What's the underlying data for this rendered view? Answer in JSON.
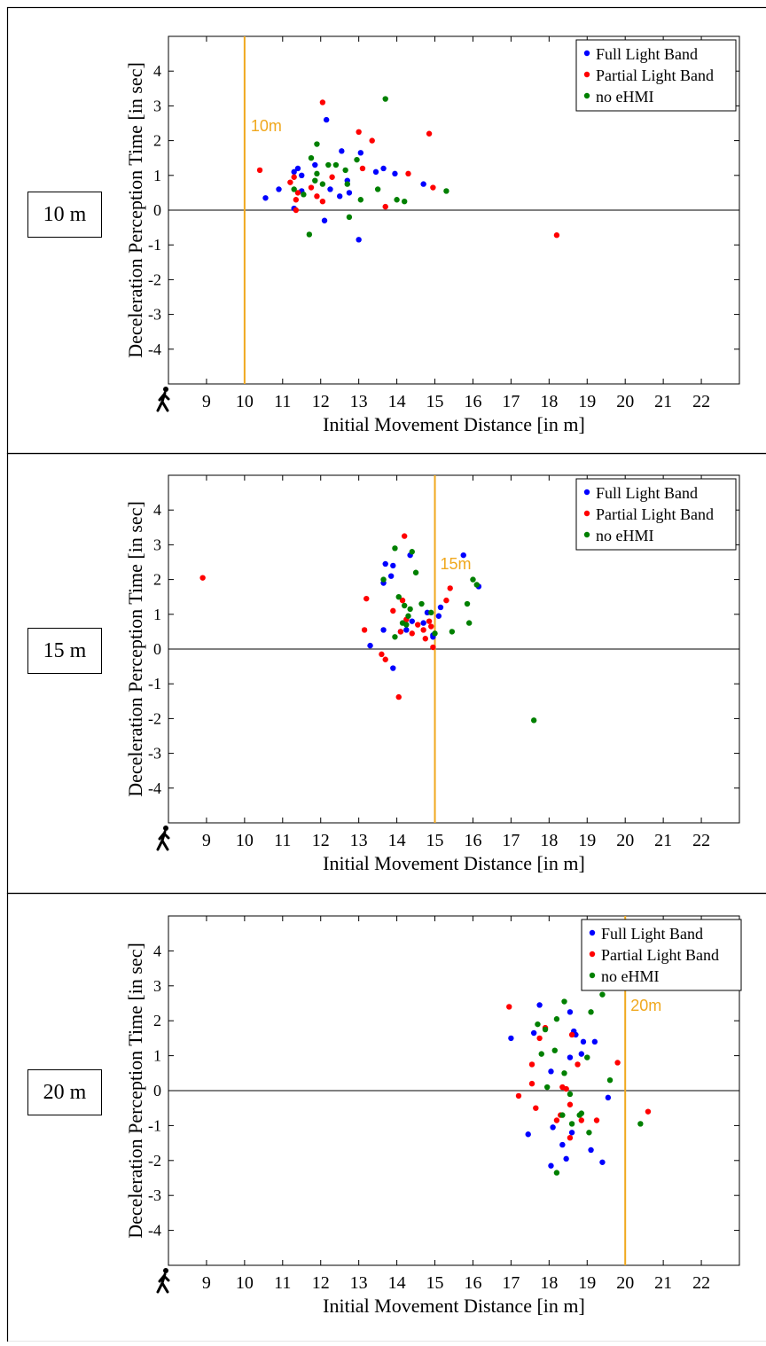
{
  "panels": [
    {
      "label": "10 m"
    },
    {
      "label": "15 m"
    },
    {
      "label": "20 m"
    }
  ],
  "legend_colors": {
    "Full Light Band": "#0000ff",
    "Partial Light Band": "#ff0000",
    "no eHMI": "#008000"
  },
  "threshold_color": "#f0a81e",
  "pedestrian_icon": "walking-person-icon",
  "chart_data": [
    {
      "type": "scatter",
      "xlabel": "Initial Movement Distance [in m]",
      "ylabel": "Deceleration Perception Time [in sec]",
      "xlim": [
        8,
        23
      ],
      "ylim": [
        -5,
        5
      ],
      "xticks": [
        "9",
        "10",
        "11",
        "12",
        "13",
        "14",
        "15",
        "16",
        "17",
        "18",
        "19",
        "20",
        "21",
        "22"
      ],
      "yticks": [
        "4",
        "3",
        "2",
        "1",
        "0",
        "-1",
        "-2",
        "-3",
        "-4"
      ],
      "threshold": {
        "x": 10,
        "label": "10m"
      },
      "legend": "top-right",
      "series": [
        {
          "name": "Full Light Band",
          "color": "#0000ff",
          "points": [
            [
              10.55,
              0.35
            ],
            [
              10.9,
              0.6
            ],
            [
              11.3,
              0.05
            ],
            [
              11.3,
              1.1
            ],
            [
              11.4,
              1.2
            ],
            [
              11.5,
              1.0
            ],
            [
              11.85,
              1.3
            ],
            [
              12.1,
              -0.3
            ],
            [
              12.15,
              2.6
            ],
            [
              12.25,
              0.6
            ],
            [
              12.5,
              0.4
            ],
            [
              12.55,
              1.7
            ],
            [
              12.7,
              0.85
            ],
            [
              12.75,
              0.5
            ],
            [
              13.0,
              -0.85
            ],
            [
              13.05,
              1.65
            ],
            [
              13.45,
              1.1
            ],
            [
              13.65,
              1.2
            ],
            [
              13.95,
              1.05
            ],
            [
              14.7,
              0.75
            ],
            [
              11.5,
              0.55
            ]
          ]
        },
        {
          "name": "Partial Light Band",
          "color": "#ff0000",
          "points": [
            [
              10.4,
              1.15
            ],
            [
              11.2,
              0.8
            ],
            [
              11.3,
              0.95
            ],
            [
              11.4,
              0.5
            ],
            [
              11.35,
              0.0
            ],
            [
              11.75,
              0.65
            ],
            [
              11.9,
              0.4
            ],
            [
              12.05,
              3.1
            ],
            [
              12.05,
              0.25
            ],
            [
              12.3,
              0.95
            ],
            [
              13.0,
              2.25
            ],
            [
              13.1,
              1.2
            ],
            [
              13.35,
              2.0
            ],
            [
              13.7,
              0.1
            ],
            [
              14.3,
              1.05
            ],
            [
              14.85,
              2.2
            ],
            [
              14.95,
              0.65
            ],
            [
              18.2,
              -0.72
            ],
            [
              11.35,
              0.3
            ]
          ]
        },
        {
          "name": "no eHMI",
          "color": "#008000",
          "points": [
            [
              11.3,
              0.6
            ],
            [
              11.55,
              0.45
            ],
            [
              11.7,
              -0.7
            ],
            [
              11.75,
              1.5
            ],
            [
              11.85,
              0.85
            ],
            [
              11.9,
              1.9
            ],
            [
              11.9,
              1.05
            ],
            [
              12.2,
              1.3
            ],
            [
              12.4,
              1.3
            ],
            [
              12.65,
              1.15
            ],
            [
              12.7,
              0.75
            ],
            [
              12.75,
              -0.2
            ],
            [
              12.95,
              1.45
            ],
            [
              13.05,
              0.3
            ],
            [
              13.5,
              0.6
            ],
            [
              13.7,
              3.2
            ],
            [
              14.0,
              0.3
            ],
            [
              14.2,
              0.25
            ],
            [
              15.3,
              0.55
            ],
            [
              12.05,
              0.75
            ]
          ]
        }
      ]
    },
    {
      "type": "scatter",
      "xlabel": "Initial Movement Distance [in m]",
      "ylabel": "Deceleration Perception Time [in sec]",
      "xlim": [
        8,
        23
      ],
      "ylim": [
        -5,
        5
      ],
      "xticks": [
        "9",
        "10",
        "11",
        "12",
        "13",
        "14",
        "15",
        "16",
        "17",
        "18",
        "19",
        "20",
        "21",
        "22"
      ],
      "yticks": [
        "4",
        "3",
        "2",
        "1",
        "0",
        "-1",
        "-2",
        "-3",
        "-4"
      ],
      "threshold": {
        "x": 15,
        "label": "15m"
      },
      "legend": "top-right",
      "series": [
        {
          "name": "Full Light Band",
          "color": "#0000ff",
          "points": [
            [
              13.3,
              0.1
            ],
            [
              13.65,
              0.55
            ],
            [
              13.65,
              1.9
            ],
            [
              13.7,
              2.45
            ],
            [
              13.85,
              2.1
            ],
            [
              13.9,
              2.4
            ],
            [
              13.9,
              -0.55
            ],
            [
              14.25,
              0.55
            ],
            [
              14.35,
              2.7
            ],
            [
              14.4,
              0.8
            ],
            [
              14.7,
              0.75
            ],
            [
              14.8,
              1.05
            ],
            [
              14.95,
              0.35
            ],
            [
              15.1,
              0.95
            ],
            [
              15.15,
              1.2
            ],
            [
              15.75,
              2.7
            ],
            [
              16.15,
              1.8
            ],
            [
              14.1,
              0.5
            ],
            [
              14.95,
              0.4
            ]
          ]
        },
        {
          "name": "Partial Light Band",
          "color": "#ff0000",
          "points": [
            [
              8.9,
              2.05
            ],
            [
              13.15,
              0.55
            ],
            [
              13.2,
              1.45
            ],
            [
              13.6,
              -0.15
            ],
            [
              13.7,
              -0.3
            ],
            [
              13.9,
              1.1
            ],
            [
              14.05,
              -1.38
            ],
            [
              14.1,
              0.5
            ],
            [
              14.15,
              1.4
            ],
            [
              14.2,
              3.25
            ],
            [
              14.25,
              0.85
            ],
            [
              14.4,
              0.45
            ],
            [
              14.55,
              0.7
            ],
            [
              14.7,
              0.55
            ],
            [
              14.75,
              0.3
            ],
            [
              14.85,
              0.8
            ],
            [
              14.95,
              0.05
            ],
            [
              15.3,
              1.4
            ],
            [
              15.4,
              1.75
            ],
            [
              14.9,
              0.65
            ]
          ]
        },
        {
          "name": "no eHMI",
          "color": "#008000",
          "points": [
            [
              13.65,
              2.0
            ],
            [
              13.95,
              0.35
            ],
            [
              13.95,
              2.9
            ],
            [
              14.05,
              1.5
            ],
            [
              14.15,
              0.75
            ],
            [
              14.2,
              1.25
            ],
            [
              14.3,
              0.95
            ],
            [
              14.35,
              1.15
            ],
            [
              14.4,
              2.8
            ],
            [
              14.5,
              2.2
            ],
            [
              14.65,
              1.3
            ],
            [
              14.9,
              1.05
            ],
            [
              15.0,
              0.45
            ],
            [
              15.45,
              0.5
            ],
            [
              15.85,
              1.3
            ],
            [
              15.9,
              0.75
            ],
            [
              16.0,
              2.0
            ],
            [
              16.1,
              1.85
            ],
            [
              17.6,
              -2.05
            ],
            [
              14.25,
              0.7
            ]
          ]
        }
      ]
    },
    {
      "type": "scatter",
      "xlabel": "Initial Movement Distance [in m]",
      "ylabel": "Deceleration Perception Time [in sec]",
      "xlim": [
        8,
        23
      ],
      "ylim": [
        -5,
        5
      ],
      "xticks": [
        "9",
        "10",
        "11",
        "12",
        "13",
        "14",
        "15",
        "16",
        "17",
        "18",
        "19",
        "20",
        "21",
        "22"
      ],
      "yticks": [
        "4",
        "3",
        "2",
        "1",
        "0",
        "-1",
        "-2",
        "-3",
        "-4"
      ],
      "threshold": {
        "x": 20,
        "label": "20m"
      },
      "legend": "top-right",
      "series": [
        {
          "name": "Full Light Band",
          "color": "#0000ff",
          "points": [
            [
              17.0,
              1.5
            ],
            [
              17.45,
              -1.25
            ],
            [
              17.6,
              1.65
            ],
            [
              17.75,
              2.45
            ],
            [
              18.05,
              0.55
            ],
            [
              18.05,
              -2.15
            ],
            [
              18.1,
              -1.05
            ],
            [
              18.35,
              -1.55
            ],
            [
              18.45,
              -1.95
            ],
            [
              18.55,
              2.25
            ],
            [
              18.55,
              0.95
            ],
            [
              18.6,
              -1.2
            ],
            [
              18.65,
              1.7
            ],
            [
              18.7,
              1.6
            ],
            [
              18.85,
              1.05
            ],
            [
              18.9,
              1.4
            ],
            [
              19.1,
              -1.7
            ],
            [
              19.2,
              1.4
            ],
            [
              19.4,
              -2.05
            ],
            [
              19.55,
              -0.2
            ]
          ]
        },
        {
          "name": "Partial Light Band",
          "color": "#ff0000",
          "points": [
            [
              16.95,
              2.4
            ],
            [
              17.2,
              -0.15
            ],
            [
              17.55,
              0.75
            ],
            [
              17.55,
              0.2
            ],
            [
              17.65,
              -0.5
            ],
            [
              17.75,
              1.5
            ],
            [
              17.9,
              1.8
            ],
            [
              18.2,
              -0.85
            ],
            [
              18.3,
              -0.7
            ],
            [
              18.35,
              0.1
            ],
            [
              18.45,
              0.05
            ],
            [
              18.55,
              -1.35
            ],
            [
              18.6,
              1.6
            ],
            [
              18.75,
              0.75
            ],
            [
              18.85,
              -0.85
            ],
            [
              19.25,
              -0.85
            ],
            [
              19.8,
              0.8
            ],
            [
              20.6,
              -0.6
            ],
            [
              18.55,
              -0.4
            ]
          ]
        },
        {
          "name": "no eHMI",
          "color": "#008000",
          "points": [
            [
              17.7,
              1.9
            ],
            [
              17.8,
              1.05
            ],
            [
              17.9,
              1.75
            ],
            [
              17.95,
              0.1
            ],
            [
              18.15,
              1.15
            ],
            [
              18.2,
              2.05
            ],
            [
              18.2,
              -2.35
            ],
            [
              18.35,
              -0.7
            ],
            [
              18.4,
              2.55
            ],
            [
              18.4,
              0.5
            ],
            [
              18.55,
              -0.1
            ],
            [
              18.6,
              -0.95
            ],
            [
              18.8,
              -0.7
            ],
            [
              18.85,
              -0.65
            ],
            [
              19.0,
              0.95
            ],
            [
              19.05,
              -1.2
            ],
            [
              19.1,
              2.25
            ],
            [
              19.4,
              2.75
            ],
            [
              19.6,
              0.3
            ],
            [
              20.4,
              -0.95
            ]
          ]
        }
      ]
    }
  ]
}
